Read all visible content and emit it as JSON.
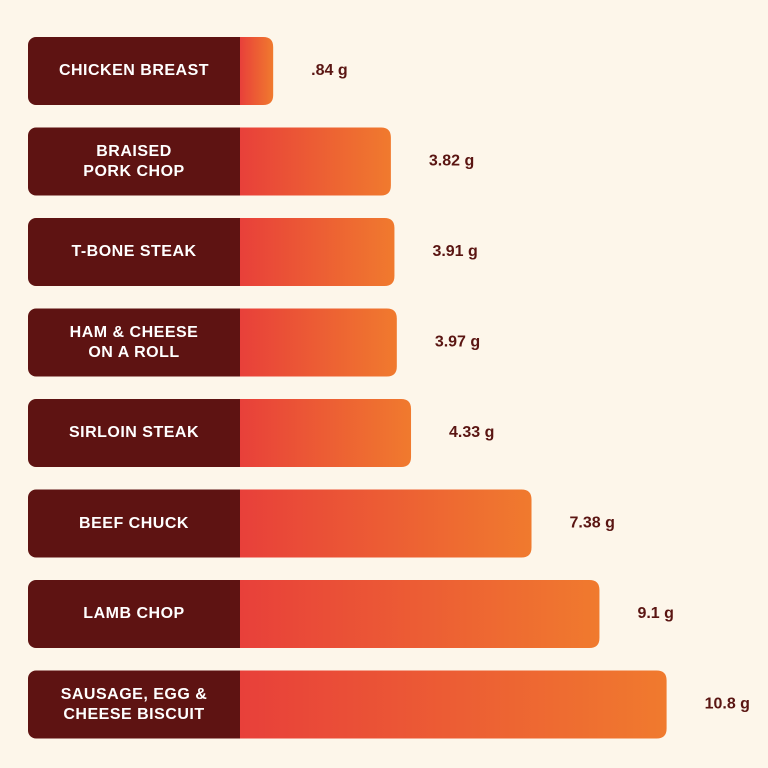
{
  "chart_data": {
    "type": "bar",
    "orientation": "horizontal",
    "categories": [
      "CHICKEN BREAST",
      "BRAISED\nPORK CHOP",
      "T-BONE STEAK",
      "HAM & CHEESE\nON A ROLL",
      "SIRLOIN STEAK",
      "BEEF CHUCK",
      "LAMB CHOP",
      "SAUSAGE, EGG &\nCHEESE BISCUIT"
    ],
    "values": [
      0.84,
      3.82,
      3.91,
      3.97,
      4.33,
      7.38,
      9.1,
      10.8
    ],
    "value_labels": [
      ".84 g",
      "3.82 g",
      "3.91 g",
      "3.97 g",
      "4.33 g",
      "7.38 g",
      "9.1 g",
      "10.8 g"
    ],
    "label_color": "#5e1312",
    "colors": [
      "#e8403a",
      "#f07a2e"
    ]
  }
}
